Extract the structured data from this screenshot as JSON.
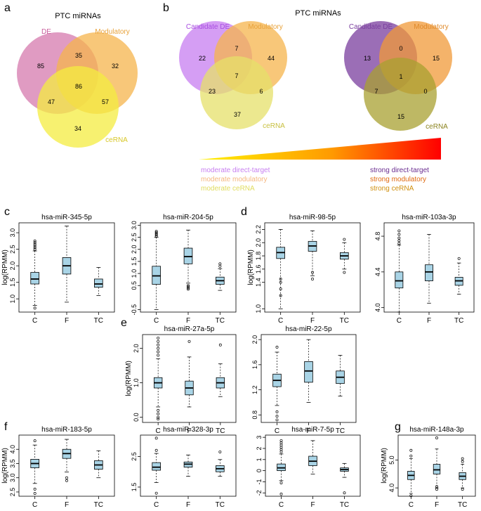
{
  "panels": {
    "a": {
      "letter": "a",
      "title": "PTC miRNAs",
      "venn": {
        "sets": [
          {
            "label": "DE",
            "color": "#d67aae",
            "label_color": "#c85a9a"
          },
          {
            "label": "Modulatory",
            "color": "#f5b44c",
            "label_color": "#e8a23a"
          },
          {
            "label": "ceRNA",
            "color": "#f4ec40",
            "label_color": "#d8c82a"
          }
        ],
        "regions": {
          "A": "85",
          "AB": "35",
          "B": "32",
          "ABC": "86",
          "AC": "47",
          "BC": "57",
          "C": "34"
        }
      }
    },
    "b": {
      "letter": "b",
      "title": "PTC miRNAs",
      "venn_left": {
        "sets": [
          {
            "label": "Candidate DE",
            "color": "#c77ef0",
            "label_color": "#a84de0"
          },
          {
            "label": "Modulatory",
            "color": "#f5b44c",
            "label_color": "#e8a23a"
          },
          {
            "label": "ceRNA",
            "color": "#e5e06a",
            "label_color": "#c8c040"
          }
        ],
        "regions": {
          "A": "22",
          "AB": "7",
          "B": "44",
          "ABC": "7",
          "AC": "23",
          "BC": "6",
          "C": "37"
        }
      },
      "venn_right": {
        "sets": [
          {
            "label": "Candidate DE",
            "color": "#7a3e9e",
            "label_color": "#7a3e9e"
          },
          {
            "label": "Modulatory",
            "color": "#f09a38",
            "label_color": "#e08a2a"
          },
          {
            "label": "ceRNA",
            "color": "#a8a030",
            "label_color": "#8c8420"
          }
        ],
        "regions": {
          "A": "13",
          "AB": "0",
          "B": "15",
          "ABC": "1",
          "AC": "7",
          "BC": "0",
          "C": "15"
        }
      },
      "gradient": {
        "start": "#fff200",
        "mid": "#ff9a00",
        "end": "#ff0000"
      },
      "legend_left": [
        {
          "text": "moderate direct-target",
          "color": "#c77ef0"
        },
        {
          "text": "moderate modulatory",
          "color": "#f5b880"
        },
        {
          "text": "moderate ceRNA",
          "color": "#e0dc60"
        }
      ],
      "legend_right": [
        {
          "text": "strong direct-target",
          "color": "#6a2d90"
        },
        {
          "text": "strong modulatory",
          "color": "#e06a10"
        },
        {
          "text": "strong ceRNA",
          "color": "#d09010"
        }
      ]
    },
    "c": {
      "letter": "c"
    },
    "d": {
      "letter": "d"
    },
    "e": {
      "letter": "e"
    },
    "f": {
      "letter": "f"
    },
    "g": {
      "letter": "g"
    }
  },
  "box_style": {
    "fill": "#a9d4e6",
    "stroke": "#000000"
  },
  "ylabel": "log(RPMM)",
  "chart_data": [
    {
      "panel": "c",
      "type": "box",
      "title": "hsa-miR-345-5p",
      "ylabel": "log(RPMM)",
      "categories": [
        "C",
        "F",
        "TC"
      ],
      "yticks": [
        "1.0",
        "1.5",
        "2.0",
        "2.5",
        "3.0"
      ],
      "ylim": [
        0.6,
        3.3
      ],
      "boxes": [
        {
          "min": 0.8,
          "q1": 1.45,
          "median": 1.6,
          "q3": 1.8,
          "max": 2.45,
          "outliers": [
            2.5,
            2.55,
            2.6,
            2.65,
            2.7,
            2.75,
            0.72
          ]
        },
        {
          "min": 0.9,
          "q1": 1.75,
          "median": 2.0,
          "q3": 2.25,
          "max": 3.2,
          "outliers": []
        },
        {
          "min": 1.1,
          "q1": 1.35,
          "median": 1.45,
          "q3": 1.6,
          "max": 1.95,
          "outliers": []
        }
      ]
    },
    {
      "panel": "c",
      "type": "box",
      "title": "hsa-miR-204-5p",
      "ylabel": "",
      "categories": [
        "C",
        "F",
        "TC"
      ],
      "yticks": [
        "-0.5",
        "0.5",
        "1.0",
        "1.5",
        "2.0",
        "2.5",
        "3.0"
      ],
      "ylim": [
        -0.6,
        3.1
      ],
      "boxes": [
        {
          "min": -0.5,
          "q1": 0.55,
          "median": 0.9,
          "q3": 1.3,
          "max": 2.5,
          "outliers": [
            2.55,
            2.6,
            2.65,
            2.7,
            2.75
          ]
        },
        {
          "min": 0.6,
          "q1": 1.4,
          "median": 1.7,
          "q3": 2.05,
          "max": 2.8,
          "outliers": [
            0.5,
            0.45,
            0.4,
            0.35
          ]
        },
        {
          "min": 0.3,
          "q1": 0.55,
          "median": 0.7,
          "q3": 0.85,
          "max": 1.2,
          "outliers": [
            1.3,
            1.4
          ]
        }
      ]
    },
    {
      "panel": "d",
      "type": "box",
      "title": "hsa-miR-98-5p",
      "ylabel": "log(RPMM)",
      "categories": [
        "C",
        "F",
        "TC"
      ],
      "yticks": [
        "1.0",
        "1.4",
        "1.6",
        "1.8",
        "2.0",
        "2.2"
      ],
      "ylim": [
        0.95,
        2.3
      ],
      "boxes": [
        {
          "min": 1.0,
          "q1": 1.76,
          "median": 1.85,
          "q3": 1.93,
          "max": 2.2,
          "outliers": [
            1.45,
            1.4,
            1.3,
            1.2
          ]
        },
        {
          "min": 1.5,
          "q1": 1.87,
          "median": 1.95,
          "q3": 2.02,
          "max": 2.18,
          "outliers": [
            1.45,
            1.55
          ]
        },
        {
          "min": 1.6,
          "q1": 1.75,
          "median": 1.8,
          "q3": 1.85,
          "max": 2.0,
          "outliers": [
            2.05,
            1.55
          ]
        }
      ]
    },
    {
      "panel": "d",
      "type": "box",
      "title": "hsa-miR-103a-3p",
      "ylabel": "",
      "categories": [
        "C",
        "F",
        "TC"
      ],
      "yticks": [
        "4.0",
        "4.4",
        "4.8"
      ],
      "ylim": [
        3.95,
        4.95
      ],
      "boxes": [
        {
          "min": 3.95,
          "q1": 4.22,
          "median": 4.3,
          "q3": 4.4,
          "max": 4.7,
          "outliers": [
            4.72,
            4.75,
            4.78,
            4.82,
            4.86
          ]
        },
        {
          "min": 4.05,
          "q1": 4.3,
          "median": 4.4,
          "q3": 4.48,
          "max": 4.82,
          "outliers": []
        },
        {
          "min": 4.15,
          "q1": 4.25,
          "median": 4.3,
          "q3": 4.34,
          "max": 4.5,
          "outliers": [
            4.55
          ]
        }
      ]
    },
    {
      "panel": "e",
      "type": "box",
      "title": "hsa-miR-27a-5p",
      "ylabel": "log(RPMM)",
      "categories": [
        "C",
        "F",
        "TC"
      ],
      "yticks": [
        "0.0",
        "1.0",
        "2.0"
      ],
      "ylim": [
        -0.15,
        2.4
      ],
      "boxes": [
        {
          "min": 0.3,
          "q1": 0.85,
          "median": 1.0,
          "q3": 1.15,
          "max": 1.7,
          "outliers": [
            1.8,
            1.9,
            2.0,
            2.1,
            2.2,
            2.3,
            0.2,
            0.1,
            0.0,
            -0.05
          ]
        },
        {
          "min": 0.3,
          "q1": 0.65,
          "median": 0.85,
          "q3": 1.05,
          "max": 1.75,
          "outliers": [
            2.2
          ]
        },
        {
          "min": 0.6,
          "q1": 0.85,
          "median": 1.0,
          "q3": 1.15,
          "max": 1.55,
          "outliers": [
            2.1
          ]
        }
      ]
    },
    {
      "panel": "e",
      "type": "box",
      "title": "hsa-miR-22-5p",
      "ylabel": "",
      "categories": [
        "C",
        "F",
        "TC"
      ],
      "yticks": [
        "0.8",
        "1.2",
        "1.6",
        "2.0"
      ],
      "ylim": [
        0.68,
        2.08
      ],
      "boxes": [
        {
          "min": 0.95,
          "q1": 1.25,
          "median": 1.35,
          "q3": 1.45,
          "max": 1.8,
          "outliers": [
            1.88,
            0.85,
            0.78,
            0.72
          ]
        },
        {
          "min": 1.0,
          "q1": 1.32,
          "median": 1.5,
          "q3": 1.65,
          "max": 2.0,
          "outliers": []
        },
        {
          "min": 1.1,
          "q1": 1.3,
          "median": 1.4,
          "q3": 1.5,
          "max": 1.75,
          "outliers": []
        }
      ]
    },
    {
      "panel": "f",
      "type": "box",
      "title": "hsa-miR-183-5p",
      "ylabel": "log(RPMM)",
      "categories": [
        "C",
        "F",
        "TC"
      ],
      "yticks": [
        "2.5",
        "3.0",
        "3.5",
        "4.0"
      ],
      "ylim": [
        2.35,
        4.5
      ],
      "boxes": [
        {
          "min": 2.8,
          "q1": 3.35,
          "median": 3.5,
          "q3": 3.65,
          "max": 4.15,
          "outliers": [
            4.3,
            2.6,
            2.45
          ]
        },
        {
          "min": 3.2,
          "q1": 3.68,
          "median": 3.85,
          "q3": 4.0,
          "max": 4.35,
          "outliers": [
            3.0,
            2.9
          ]
        },
        {
          "min": 3.0,
          "q1": 3.3,
          "median": 3.45,
          "q3": 3.6,
          "max": 3.95,
          "outliers": []
        }
      ]
    },
    {
      "panel": "f",
      "type": "box",
      "title": "hsa-miR-328-3p",
      "ylabel": "",
      "categories": [
        "C",
        "F",
        "TC"
      ],
      "yticks": [
        "1.5",
        "2.5"
      ],
      "ylim": [
        1.2,
        3.2
      ],
      "boxes": [
        {
          "min": 1.65,
          "q1": 2.05,
          "median": 2.15,
          "q3": 2.3,
          "max": 2.6,
          "outliers": [
            2.7,
            3.1,
            1.3
          ]
        },
        {
          "min": 1.85,
          "q1": 2.15,
          "median": 2.25,
          "q3": 2.32,
          "max": 2.55,
          "outliers": []
        },
        {
          "min": 1.85,
          "q1": 2.0,
          "median": 2.1,
          "q3": 2.2,
          "max": 2.4,
          "outliers": [
            2.65
          ]
        }
      ]
    },
    {
      "panel": "f",
      "type": "box",
      "title": "hsa-miR-7-5p",
      "ylabel": "",
      "categories": [
        "C",
        "F",
        "TC"
      ],
      "yticks": [
        "-2",
        "-1",
        "0",
        "1",
        "2",
        "3"
      ],
      "ylim": [
        -2.3,
        3.2
      ],
      "boxes": [
        {
          "min": -0.9,
          "q1": 0.0,
          "median": 0.25,
          "q3": 0.6,
          "max": 1.5,
          "outliers": [
            1.7,
            1.9,
            2.1,
            2.3,
            2.5,
            2.7,
            -1.1,
            -2.1
          ]
        },
        {
          "min": -0.3,
          "q1": 0.45,
          "median": 0.85,
          "q3": 1.3,
          "max": 2.7,
          "outliers": []
        },
        {
          "min": -0.6,
          "q1": -0.05,
          "median": 0.1,
          "q3": 0.25,
          "max": 0.65,
          "outliers": [
            -2.0
          ]
        }
      ]
    },
    {
      "panel": "g",
      "type": "box",
      "title": "hsa-miR-148a-3p",
      "ylabel": "log(RPMM)",
      "categories": [
        "C",
        "F",
        "TC"
      ],
      "yticks": [
        "4.0",
        "5.0"
      ],
      "ylim": [
        3.7,
        5.9
      ],
      "boxes": [
        {
          "min": 3.8,
          "q1": 4.3,
          "median": 4.45,
          "q3": 4.6,
          "max": 5.05,
          "outliers": [
            5.15,
            5.35,
            3.72
          ]
        },
        {
          "min": 4.0,
          "q1": 4.5,
          "median": 4.65,
          "q3": 4.85,
          "max": 5.4,
          "outliers": [
            5.8,
            4.05,
            3.95
          ]
        },
        {
          "min": 4.0,
          "q1": 4.3,
          "median": 4.42,
          "q3": 4.55,
          "max": 4.85,
          "outliers": [
            5.05,
            4.95,
            3.95
          ]
        }
      ]
    }
  ]
}
